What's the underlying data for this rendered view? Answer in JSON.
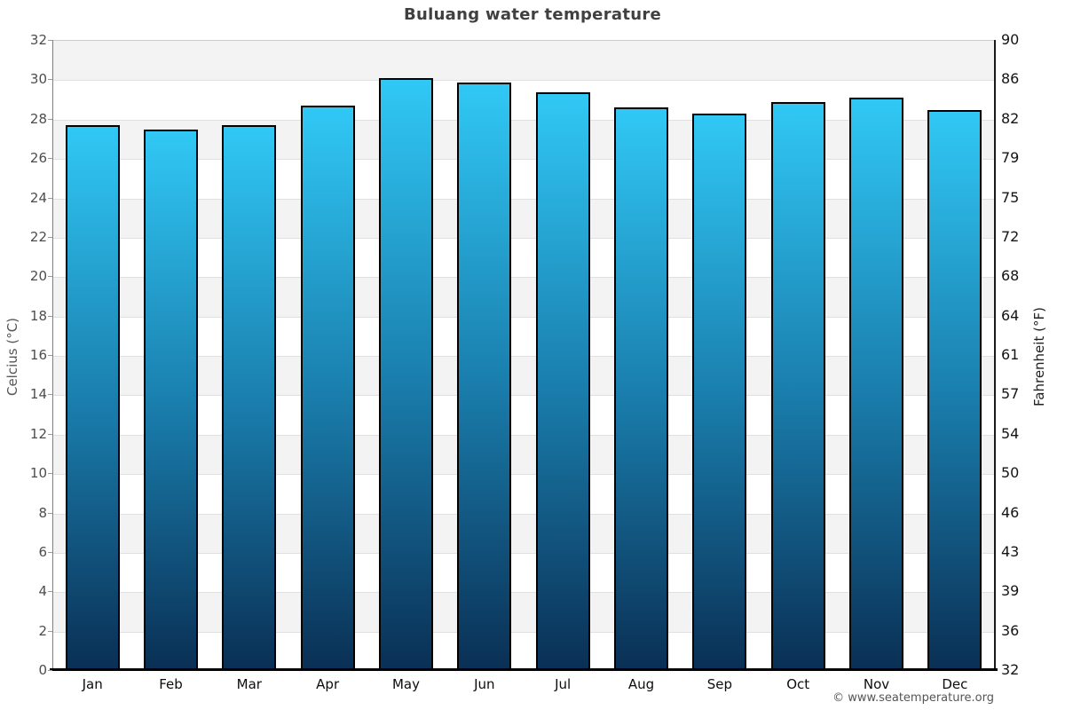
{
  "header": {
    "title": "Buluang water temperature"
  },
  "footer": {
    "credit": "© www.seatemperature.org"
  },
  "chart_data": {
    "type": "bar",
    "title": "Buluang water temperature",
    "categories": [
      "Jan",
      "Feb",
      "Mar",
      "Apr",
      "May",
      "Jun",
      "Jul",
      "Aug",
      "Sep",
      "Oct",
      "Nov",
      "Dec"
    ],
    "values": [
      27.7,
      27.5,
      27.7,
      28.7,
      30.1,
      29.9,
      29.4,
      28.6,
      28.3,
      28.9,
      29.1,
      28.5
    ],
    "unit": "°C",
    "xlabel": "",
    "ylabel_left": "Celcius (°C)",
    "ylabel_right": "Fahrenheit (°F)",
    "ylim": [
      0,
      32
    ],
    "tick_step": 2,
    "left_ticks": [
      "32",
      "30",
      "28",
      "26",
      "24",
      "22",
      "20",
      "18",
      "16",
      "14",
      "12",
      "10",
      "8",
      "6",
      "4",
      "2",
      "0"
    ],
    "right_ticks": [
      "90",
      "86",
      "82",
      "79",
      "75",
      "72",
      "68",
      "64",
      "61",
      "57",
      "54",
      "50",
      "46",
      "43",
      "39",
      "36",
      "32"
    ],
    "grid": "alternating-horizontal-bands",
    "legend": "none",
    "colors": {
      "bar_gradient_top": "#31c8f5",
      "bar_gradient_mid": "#1a7fae",
      "bar_gradient_bottom": "#0a2f54",
      "bar_border": "#000000",
      "band_gray": "#f3f3f3",
      "gridline": "#e0e0e0",
      "title_text": "#404040",
      "left_axis_text": "#4d4d4d",
      "right_axis_text": "#141414"
    }
  }
}
